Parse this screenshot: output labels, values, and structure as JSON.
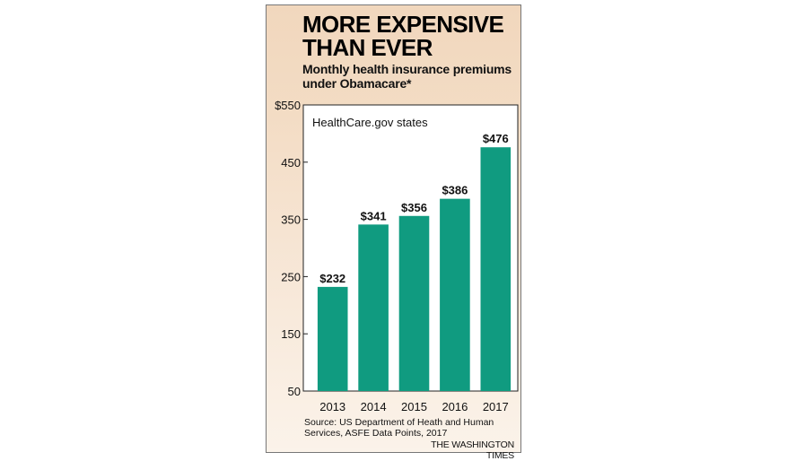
{
  "title": "MORE EXPENSIVE THAN EVER",
  "subtitle": "Monthly health insurance premiums under Obamacare*",
  "source": "Source: US Department of Heath and Human Services, ASFE Data Points, 2017",
  "credit": "THE WASHINGTON TIMES",
  "colors": {
    "bar": "#109b80",
    "background": "#f3dcc4",
    "plot_background": "#ffffff"
  },
  "chart_data": {
    "type": "bar",
    "annotation": "HealthCare.gov states",
    "categories": [
      "2013",
      "2014",
      "2015",
      "2016",
      "2017"
    ],
    "values": [
      232,
      341,
      356,
      386,
      476
    ],
    "data_labels": [
      "$232",
      "$341",
      "$356",
      "$386",
      "$476"
    ],
    "ylim": [
      50,
      550
    ],
    "yticks": [
      50,
      150,
      250,
      350,
      450,
      550
    ],
    "ytick_labels": [
      "50",
      "150",
      "250",
      "350",
      "450",
      "$550"
    ],
    "grid": false
  }
}
